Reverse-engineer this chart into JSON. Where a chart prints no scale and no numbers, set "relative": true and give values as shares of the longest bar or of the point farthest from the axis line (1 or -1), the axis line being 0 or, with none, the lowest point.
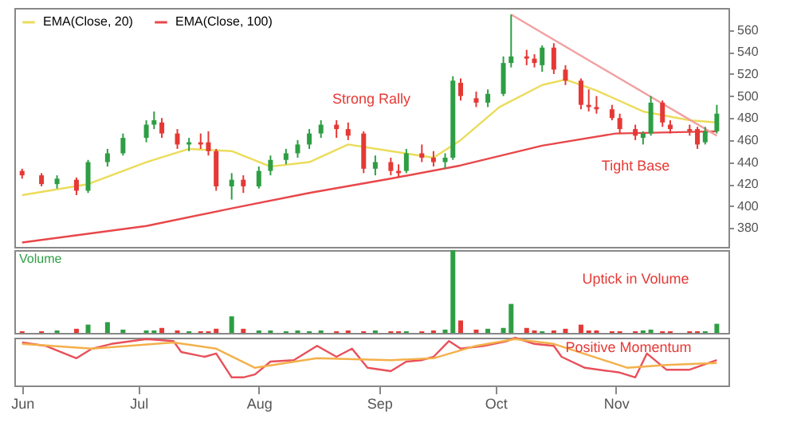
{
  "chart_data": [
    {
      "type": "candlestick",
      "legend": "top left",
      "tick_labels": "y",
      "xlim": [
        "--05-30",
        "--11-30"
      ],
      "ylim": [
        363,
        580
      ],
      "yticks": [
        380,
        400,
        420,
        440,
        460,
        480,
        500,
        520,
        540,
        560
      ],
      "x": [
        "--06-01",
        "--06-06",
        "--06-10",
        "--06-15",
        "--06-18",
        "--06-23",
        "--06-27",
        "--07-03",
        "--07-05",
        "--07-07",
        "--07-11",
        "--07-14",
        "--07-17",
        "--07-19",
        "--07-21",
        "--07-25",
        "--07-28",
        "--08-01",
        "--08-04",
        "--08-08",
        "--08-11",
        "--08-14",
        "--08-17",
        "--08-21",
        "--08-24",
        "--08-28",
        "--08-31",
        "--09-04",
        "--09-06",
        "--09-08",
        "--09-12",
        "--09-15",
        "--09-18",
        "--09-20",
        "--09-22",
        "--09-26",
        "--09-29",
        "--10-03",
        "--10-05",
        "--10-09",
        "--10-11",
        "--10-13",
        "--10-16",
        "--10-19",
        "--10-23",
        "--10-25",
        "--10-27",
        "--10-31",
        "--11-02",
        "--11-06",
        "--11-08",
        "--11-10",
        "--11-13",
        "--11-15",
        "--11-20",
        "--11-22",
        "--11-24",
        "--11-27"
      ],
      "ohlc": [
        [
          432,
          434,
          425,
          428
        ],
        [
          428,
          430,
          418,
          420
        ],
        [
          420,
          428,
          416,
          425
        ],
        [
          424,
          426,
          410,
          414
        ],
        [
          414,
          442,
          412,
          440
        ],
        [
          440,
          452,
          436,
          448
        ],
        [
          448,
          466,
          446,
          462
        ],
        [
          462,
          478,
          458,
          474
        ],
        [
          474,
          486,
          470,
          478
        ],
        [
          476,
          480,
          462,
          466
        ],
        [
          466,
          470,
          452,
          456
        ],
        [
          456,
          462,
          450,
          458
        ],
        [
          458,
          466,
          452,
          456
        ],
        [
          458,
          468,
          446,
          450
        ],
        [
          450,
          452,
          414,
          418
        ],
        [
          418,
          430,
          406,
          424
        ],
        [
          424,
          428,
          412,
          418
        ],
        [
          418,
          436,
          416,
          432
        ],
        [
          432,
          446,
          428,
          442
        ],
        [
          442,
          452,
          438,
          448
        ],
        [
          448,
          460,
          444,
          456
        ],
        [
          456,
          470,
          452,
          466
        ],
        [
          466,
          478,
          462,
          474
        ],
        [
          474,
          478,
          462,
          470
        ],
        [
          470,
          476,
          460,
          464
        ],
        [
          466,
          468,
          430,
          434
        ],
        [
          434,
          446,
          428,
          440
        ],
        [
          440,
          444,
          428,
          432
        ],
        [
          432,
          438,
          426,
          430
        ],
        [
          432,
          452,
          430,
          448
        ],
        [
          448,
          456,
          440,
          444
        ],
        [
          444,
          450,
          436,
          440
        ],
        [
          440,
          448,
          434,
          444
        ],
        [
          444,
          518,
          442,
          514
        ],
        [
          512,
          516,
          496,
          500
        ],
        [
          498,
          504,
          490,
          494
        ],
        [
          494,
          506,
          490,
          502
        ],
        [
          502,
          536,
          500,
          530
        ],
        [
          530,
          574,
          526,
          536
        ],
        [
          536,
          542,
          528,
          534
        ],
        [
          534,
          538,
          526,
          530
        ],
        [
          528,
          546,
          522,
          544
        ],
        [
          544,
          548,
          520,
          524
        ],
        [
          524,
          528,
          510,
          514
        ],
        [
          514,
          516,
          488,
          492
        ],
        [
          492,
          506,
          486,
          490
        ],
        [
          490,
          500,
          484,
          488
        ],
        [
          488,
          492,
          478,
          480
        ],
        [
          480,
          484,
          466,
          470
        ],
        [
          470,
          474,
          460,
          464
        ],
        [
          462,
          468,
          456,
          466
        ],
        [
          466,
          500,
          464,
          494
        ],
        [
          494,
          496,
          472,
          476
        ],
        [
          474,
          478,
          466,
          470
        ],
        [
          470,
          474,
          464,
          468
        ],
        [
          470,
          472,
          452,
          456
        ],
        [
          458,
          472,
          456,
          468
        ],
        [
          468,
          492,
          466,
          484
        ]
      ],
      "colors": [
        "#e53935",
        "#e53935",
        "#2e9e44",
        "#e53935",
        "#2e9e44",
        "#2e9e44",
        "#2e9e44",
        "#2e9e44",
        "#2e9e44",
        "#e53935",
        "#e53935",
        "#2e9e44",
        "#e53935",
        "#e53935",
        "#e53935",
        "#2e9e44",
        "#e53935",
        "#2e9e44",
        "#2e9e44",
        "#2e9e44",
        "#2e9e44",
        "#2e9e44",
        "#2e9e44",
        "#e53935",
        "#e53935",
        "#e53935",
        "#2e9e44",
        "#e53935",
        "#e53935",
        "#2e9e44",
        "#e53935",
        "#e53935",
        "#2e9e44",
        "#2e9e44",
        "#e53935",
        "#e53935",
        "#2e9e44",
        "#2e9e44",
        "#2e9e44",
        "#e53935",
        "#e53935",
        "#2e9e44",
        "#e53935",
        "#e53935",
        "#e53935",
        "#e53935",
        "#e53935",
        "#e53935",
        "#e53935",
        "#e53935",
        "#2e9e44",
        "#2e9e44",
        "#e53935",
        "#e53935",
        "#e53935",
        "#e53935",
        "#2e9e44",
        "#2e9e44"
      ],
      "series": [
        {
          "name": "EMA(Close, 20)",
          "type": "line",
          "color": "#ebdc5a",
          "x": [
            "--06-01",
            "--06-18",
            "--07-03",
            "--07-14",
            "--07-25",
            "--08-04",
            "--08-14",
            "--08-24",
            "--09-04",
            "--09-15",
            "--09-22",
            "--10-02",
            "--10-13",
            "--10-19",
            "--10-27",
            "--11-08",
            "--11-20",
            "--11-27"
          ],
          "values": [
            410,
            420,
            440,
            452,
            450,
            436,
            440,
            456,
            450,
            444,
            460,
            490,
            510,
            515,
            505,
            486,
            478,
            476
          ]
        },
        {
          "name": "EMA(Close, 100)",
          "type": "line",
          "color": "#e8474a",
          "x": [
            "--06-01",
            "--07-03",
            "--07-25",
            "--08-14",
            "--09-04",
            "--09-22",
            "--10-13",
            "--11-01",
            "--11-27"
          ],
          "values": [
            367,
            382,
            398,
            412,
            425,
            437,
            455,
            466,
            468
          ]
        },
        {
          "type": "line",
          "color": "#f2a0a0",
          "x": [
            "--10-05",
            "--11-27"
          ],
          "values": [
            574,
            464
          ]
        }
      ],
      "annotations": [
        "Strong Rally",
        "Tight Base"
      ]
    },
    {
      "type": "bar",
      "title": "Volume",
      "relative": true,
      "tick_labels": false,
      "xlim": [
        "--05-30",
        "--11-30"
      ],
      "x": [
        "--06-01",
        "--06-06",
        "--06-10",
        "--06-15",
        "--06-18",
        "--06-23",
        "--06-27",
        "--07-03",
        "--07-05",
        "--07-07",
        "--07-11",
        "--07-14",
        "--07-17",
        "--07-19",
        "--07-21",
        "--07-25",
        "--07-28",
        "--08-01",
        "--08-04",
        "--08-08",
        "--08-11",
        "--08-14",
        "--08-17",
        "--08-21",
        "--08-24",
        "--08-28",
        "--08-31",
        "--09-04",
        "--09-06",
        "--09-08",
        "--09-12",
        "--09-15",
        "--09-18",
        "--09-20",
        "--09-22",
        "--09-26",
        "--09-29",
        "--10-03",
        "--10-05",
        "--10-09",
        "--10-11",
        "--10-13",
        "--10-16",
        "--10-19",
        "--10-23",
        "--10-25",
        "--10-27",
        "--10-31",
        "--11-02",
        "--11-06",
        "--11-08",
        "--11-10",
        "--11-13",
        "--11-15",
        "--11-20",
        "--11-22",
        "--11-24",
        "--11-27"
      ],
      "values": [
        0.02,
        0.02,
        0.03,
        0.05,
        0.1,
        0.13,
        0.04,
        0.03,
        0.03,
        0.06,
        0.03,
        0.02,
        0.02,
        0.02,
        0.05,
        0.2,
        0.05,
        0.03,
        0.03,
        0.02,
        0.03,
        0.02,
        0.03,
        0.02,
        0.03,
        0.02,
        0.03,
        0.02,
        0.02,
        0.02,
        0.02,
        0.03,
        0.04,
        1,
        0.15,
        0.04,
        0.05,
        0.06,
        0.35,
        0.06,
        0.03,
        0.02,
        0.03,
        0.05,
        0.1,
        0.03,
        0.03,
        0.02,
        0.02,
        0.02,
        0.03,
        0.04,
        0.02,
        0.02,
        0.02,
        0.02,
        0.02,
        0.11
      ],
      "colors": [
        "#e53935",
        "#e53935",
        "#2e9e44",
        "#e53935",
        "#2e9e44",
        "#2e9e44",
        "#2e9e44",
        "#2e9e44",
        "#2e9e44",
        "#e53935",
        "#e53935",
        "#2e9e44",
        "#e53935",
        "#e53935",
        "#e53935",
        "#2e9e44",
        "#e53935",
        "#2e9e44",
        "#2e9e44",
        "#2e9e44",
        "#2e9e44",
        "#2e9e44",
        "#2e9e44",
        "#e53935",
        "#e53935",
        "#e53935",
        "#2e9e44",
        "#e53935",
        "#e53935",
        "#2e9e44",
        "#e53935",
        "#e53935",
        "#2e9e44",
        "#2e9e44",
        "#e53935",
        "#e53935",
        "#2e9e44",
        "#2e9e44",
        "#2e9e44",
        "#e53935",
        "#e53935",
        "#2e9e44",
        "#e53935",
        "#e53935",
        "#e53935",
        "#e53935",
        "#e53935",
        "#e53935",
        "#e53935",
        "#e53935",
        "#2e9e44",
        "#2e9e44",
        "#e53935",
        "#e53935",
        "#e53935",
        "#e53935",
        "#2e9e44",
        "#2e9e44"
      ],
      "annotations": [
        "Uptick in Volume"
      ]
    },
    {
      "type": "line",
      "relative": true,
      "tick_labels": "x",
      "marker": "none",
      "xlim": [
        "--05-30",
        "--11-30"
      ],
      "xticks": [
        {
          "value": "--06-01",
          "label": "Jun"
        },
        {
          "value": "--07-01",
          "label": "Jul"
        },
        {
          "value": "--08-01",
          "label": "Aug"
        },
        {
          "value": "--09-01",
          "label": "Sep"
        },
        {
          "value": "--10-01",
          "label": "Oct"
        },
        {
          "value": "--11-01",
          "label": "Nov"
        }
      ],
      "series": [
        {
          "color": "#e8505a",
          "x": [
            "--06-01",
            "--06-07",
            "--06-15",
            "--06-19",
            "--06-24",
            "--07-03",
            "--07-10",
            "--07-12",
            "--07-18",
            "--07-21",
            "--07-25",
            "--07-28",
            "--07-31",
            "--08-04",
            "--08-10",
            "--08-16",
            "--08-21",
            "--08-25",
            "--08-29",
            "--09-04",
            "--09-08",
            "--09-12",
            "--09-15",
            "--09-19",
            "--09-22",
            "--09-28",
            "--10-04",
            "--10-06",
            "--10-11",
            "--10-16",
            "--10-18",
            "--10-24",
            "--11-02",
            "--11-06",
            "--11-09",
            "--11-14",
            "--11-20",
            "--11-27"
          ],
          "values": [
            0.9,
            0.83,
            0.57,
            0.77,
            0.87,
            0.97,
            0.93,
            0.7,
            0.6,
            0.67,
            0.17,
            0.17,
            0.23,
            0.5,
            0.53,
            0.83,
            0.6,
            0.77,
            0.37,
            0.3,
            0.5,
            0.53,
            0.6,
            0.93,
            0.77,
            0.83,
            0.93,
            1,
            0.87,
            0.83,
            0.6,
            0.37,
            0.27,
            0.17,
            0.67,
            0.33,
            0.33,
            0.53
          ]
        },
        {
          "color": "#f4b04a",
          "x": [
            "--06-01",
            "--06-19",
            "--07-10",
            "--07-21",
            "--07-31",
            "--08-16",
            "--09-04",
            "--09-15",
            "--09-26",
            "--10-06",
            "--10-16",
            "--11-04",
            "--11-14",
            "--11-27"
          ],
          "values": [
            0.87,
            0.77,
            0.9,
            0.77,
            0.37,
            0.57,
            0.53,
            0.57,
            0.83,
            0.97,
            0.87,
            0.37,
            0.43,
            0.47
          ]
        }
      ],
      "annotations": [
        "Positive Momentum"
      ]
    }
  ]
}
